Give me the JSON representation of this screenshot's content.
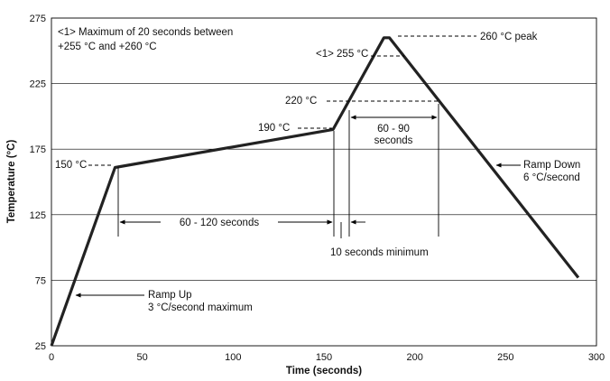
{
  "chart_data": {
    "type": "line",
    "xlabel": "Time (seconds)",
    "ylabel": "Temperature (°C)",
    "xlim": [
      0,
      300
    ],
    "ylim": [
      25,
      275
    ],
    "xticks": [
      0,
      50,
      100,
      150,
      200,
      250,
      300
    ],
    "yticks": [
      25,
      75,
      125,
      175,
      225,
      275
    ],
    "grid": "horizontal",
    "series": [
      {
        "x": [
          0,
          35,
          155,
          183,
          186,
          290
        ],
        "y": [
          25,
          161,
          190,
          260,
          260,
          77
        ]
      }
    ],
    "annotations": {
      "note_line1": "<1> Maximum of 20 seconds between",
      "note_line2": "+255 °C and +260 °C",
      "peak": "260 °C peak",
      "t255": "<1> 255 °C",
      "t220": "220 °C",
      "t190": "190 °C",
      "t150": "150 °C",
      "span_60_90_line1": "60 - 90",
      "span_60_90_line2": "seconds",
      "span_60_120": "60 - 120 seconds",
      "min10": "10 seconds minimum",
      "ramp_down_line1": "Ramp Down",
      "ramp_down_line2": "6 °C/second",
      "ramp_up_line1": "Ramp Up",
      "ramp_up_line2": "3 °C/second maximum"
    }
  }
}
